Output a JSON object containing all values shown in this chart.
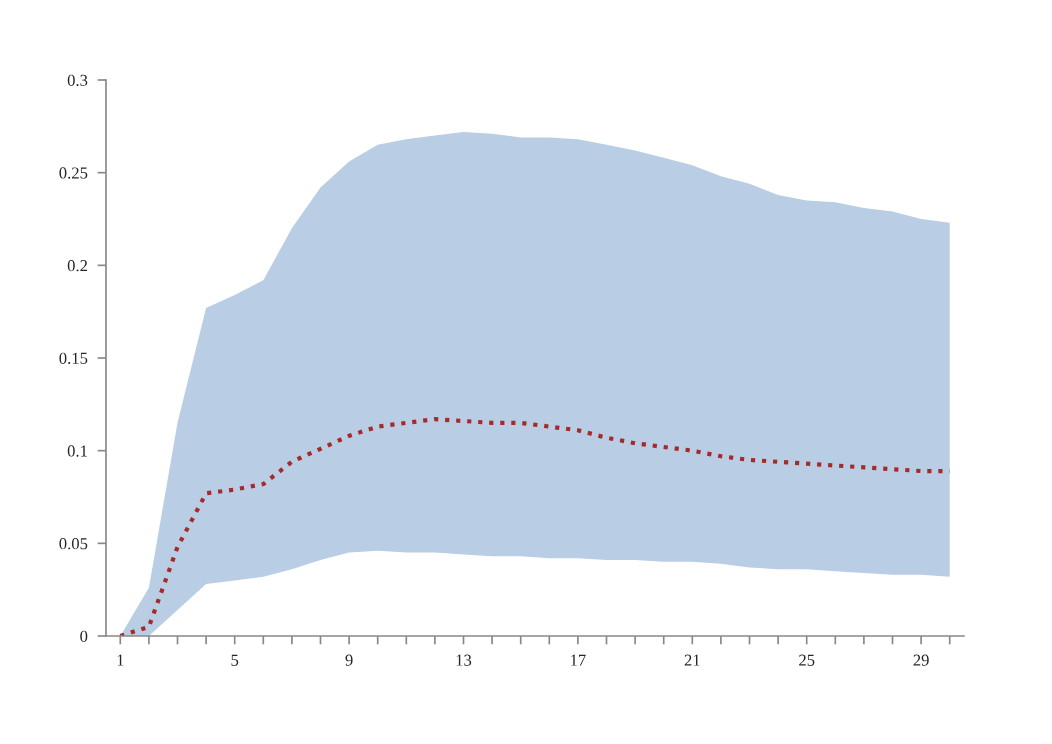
{
  "chart_data": {
    "type": "line",
    "x": [
      1,
      2,
      3,
      4,
      5,
      6,
      7,
      8,
      9,
      10,
      11,
      12,
      13,
      14,
      15,
      16,
      17,
      18,
      19,
      20,
      21,
      22,
      23,
      24,
      25,
      26,
      27,
      28,
      29,
      30
    ],
    "series": [
      {
        "color": "#b9cde4",
        "values": [
          null,
          null,
          null,
          null,
          null,
          null,
          null,
          null,
          null,
          null,
          null,
          null,
          null,
          null,
          null,
          null,
          null,
          null,
          null,
          null,
          null,
          null,
          null,
          null,
          null,
          null,
          null,
          null,
          null,
          null
        ],
        "upper": [
          0,
          0.026,
          0.115,
          0.177,
          0.184,
          0.192,
          0.22,
          0.242,
          0.256,
          0.265,
          0.268,
          0.27,
          0.272,
          0.271,
          0.269,
          0.269,
          0.268,
          0.265,
          0.262,
          0.258,
          0.254,
          0.248,
          0.244,
          0.238,
          0.235,
          0.234,
          0.231,
          0.229,
          0.225,
          0.223
        ],
        "lower": [
          0,
          0,
          0.014,
          0.028,
          0.03,
          0.032,
          0.036,
          0.041,
          0.045,
          0.046,
          0.045,
          0.045,
          0.044,
          0.043,
          0.043,
          0.042,
          0.042,
          0.041,
          0.041,
          0.04,
          0.04,
          0.039,
          0.037,
          0.036,
          0.036,
          0.035,
          0.034,
          0.033,
          0.033,
          0.032
        ]
      },
      {
        "color": "#a52a2a",
        "line_style": "dotted",
        "values": [
          0,
          0.005,
          0.048,
          0.077,
          0.079,
          0.082,
          0.094,
          0.101,
          0.108,
          0.113,
          0.115,
          0.117,
          0.116,
          0.115,
          0.115,
          0.113,
          0.111,
          0.107,
          0.104,
          0.102,
          0.1,
          0.097,
          0.095,
          0.094,
          0.093,
          0.092,
          0.091,
          0.09,
          0.089,
          0.089
        ]
      }
    ],
    "xlim": [
      0.5,
      30.5
    ],
    "xticks": [
      1,
      {
        "value": 2,
        "label": null
      },
      {
        "value": 3,
        "label": null
      },
      {
        "value": 4,
        "label": null
      },
      5,
      {
        "value": 6,
        "label": null
      },
      {
        "value": 7,
        "label": null
      },
      {
        "value": 8,
        "label": null
      },
      9,
      {
        "value": 10,
        "label": null
      },
      {
        "value": 11,
        "label": null
      },
      {
        "value": 12,
        "label": null
      },
      13,
      {
        "value": 14,
        "label": null
      },
      {
        "value": 15,
        "label": null
      },
      {
        "value": 16,
        "label": null
      },
      17,
      {
        "value": 18,
        "label": null
      },
      {
        "value": 19,
        "label": null
      },
      {
        "value": 20,
        "label": null
      },
      21,
      {
        "value": 22,
        "label": null
      },
      {
        "value": 23,
        "label": null
      },
      {
        "value": 24,
        "label": null
      },
      25,
      {
        "value": 26,
        "label": null
      },
      {
        "value": 27,
        "label": null
      },
      {
        "value": 28,
        "label": null
      },
      29,
      {
        "value": 30,
        "label": null
      }
    ],
    "ylim": [
      0,
      0.3
    ],
    "yticks": [
      0,
      0.05,
      0.1,
      0.15,
      0.2,
      0.25,
      0.3
    ],
    "grid": false,
    "legend": false
  }
}
